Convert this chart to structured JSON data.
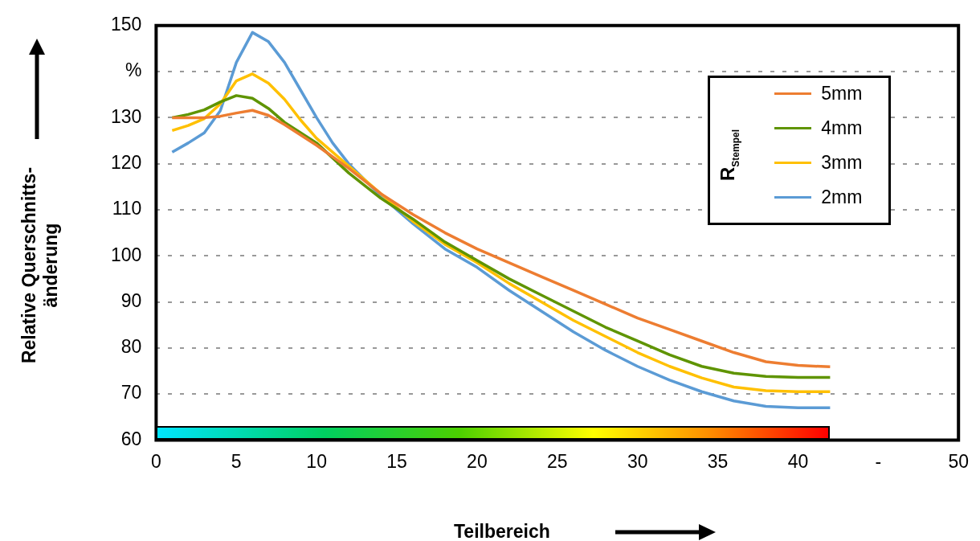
{
  "chart_data": {
    "type": "line",
    "xlabel": "Teilbereich",
    "ylabel": "Relative Querschnitts-\nänderung",
    "legend_title": "R$_{Stempel}$",
    "xlim": [
      0,
      50
    ],
    "xticks": [
      0,
      5,
      10,
      15,
      20,
      25,
      30,
      35,
      40,
      {
        "value": 45,
        "label": "-"
      },
      50
    ],
    "ylim": [
      60,
      150
    ],
    "yticks": [
      60,
      70,
      80,
      90,
      100,
      110,
      120,
      130,
      {
        "value": 140,
        "label": "%"
      },
      150
    ],
    "grid": "y",
    "legend": "top right",
    "marker": "none",
    "line_style": "solid",
    "series": [
      {
        "name": "5mm",
        "color": "#ed7d31",
        "x": [
          1,
          2,
          3,
          4,
          5,
          6,
          7,
          8,
          10,
          12,
          14,
          16,
          18,
          20,
          22,
          24,
          26,
          28,
          30,
          32,
          34,
          36,
          38,
          40,
          42
        ],
        "values": [
          130,
          130,
          130,
          130.3,
          131,
          131.6,
          130.5,
          128.5,
          124,
          119,
          113.5,
          109,
          105,
          101.5,
          98.5,
          95.5,
          92.5,
          89.5,
          86.5,
          84,
          81.5,
          79,
          77,
          76.2,
          75.9
        ]
      },
      {
        "name": "4mm",
        "color": "#5f9400",
        "x": [
          1,
          2,
          3,
          4,
          5,
          6,
          7,
          8,
          10,
          12,
          14,
          16,
          18,
          20,
          22,
          24,
          26,
          28,
          30,
          32,
          34,
          36,
          38,
          40,
          42
        ],
        "values": [
          130,
          130.7,
          131.7,
          133.4,
          134.8,
          134.2,
          132,
          129,
          124.5,
          118,
          112.5,
          108,
          103,
          99,
          95,
          91.5,
          88,
          84.5,
          81.5,
          78.5,
          76,
          74.5,
          73.8,
          73.6,
          73.6
        ]
      },
      {
        "name": "3mm",
        "color": "#ffc000",
        "x": [
          1,
          2,
          3,
          4,
          5,
          6,
          7,
          8,
          9,
          10,
          12,
          14,
          16,
          18,
          20,
          22,
          24,
          26,
          28,
          30,
          32,
          34,
          36,
          38,
          40,
          42
        ],
        "values": [
          127.2,
          128.3,
          129.8,
          133,
          138,
          139.5,
          137.5,
          134,
          129.5,
          125.5,
          119.5,
          113.5,
          107.5,
          102.5,
          98.5,
          94,
          90,
          86,
          82.5,
          79,
          76,
          73.5,
          71.5,
          70.7,
          70.5,
          70.5
        ]
      },
      {
        "name": "2mm",
        "color": "#5b9bd5",
        "x": [
          1,
          2,
          3,
          4,
          5,
          6,
          7,
          8,
          9,
          10,
          11,
          12,
          14,
          16,
          18,
          20,
          22,
          24,
          26,
          28,
          30,
          32,
          34,
          36,
          38,
          40,
          42
        ],
        "values": [
          122.5,
          124.5,
          126.7,
          131.5,
          142,
          148.5,
          146.5,
          142,
          136,
          130,
          124.5,
          120,
          113,
          107,
          101.5,
          97.5,
          92.5,
          88,
          83.5,
          79.5,
          76,
          73,
          70.5,
          68.5,
          67.3,
          67,
          67
        ]
      }
    ]
  }
}
